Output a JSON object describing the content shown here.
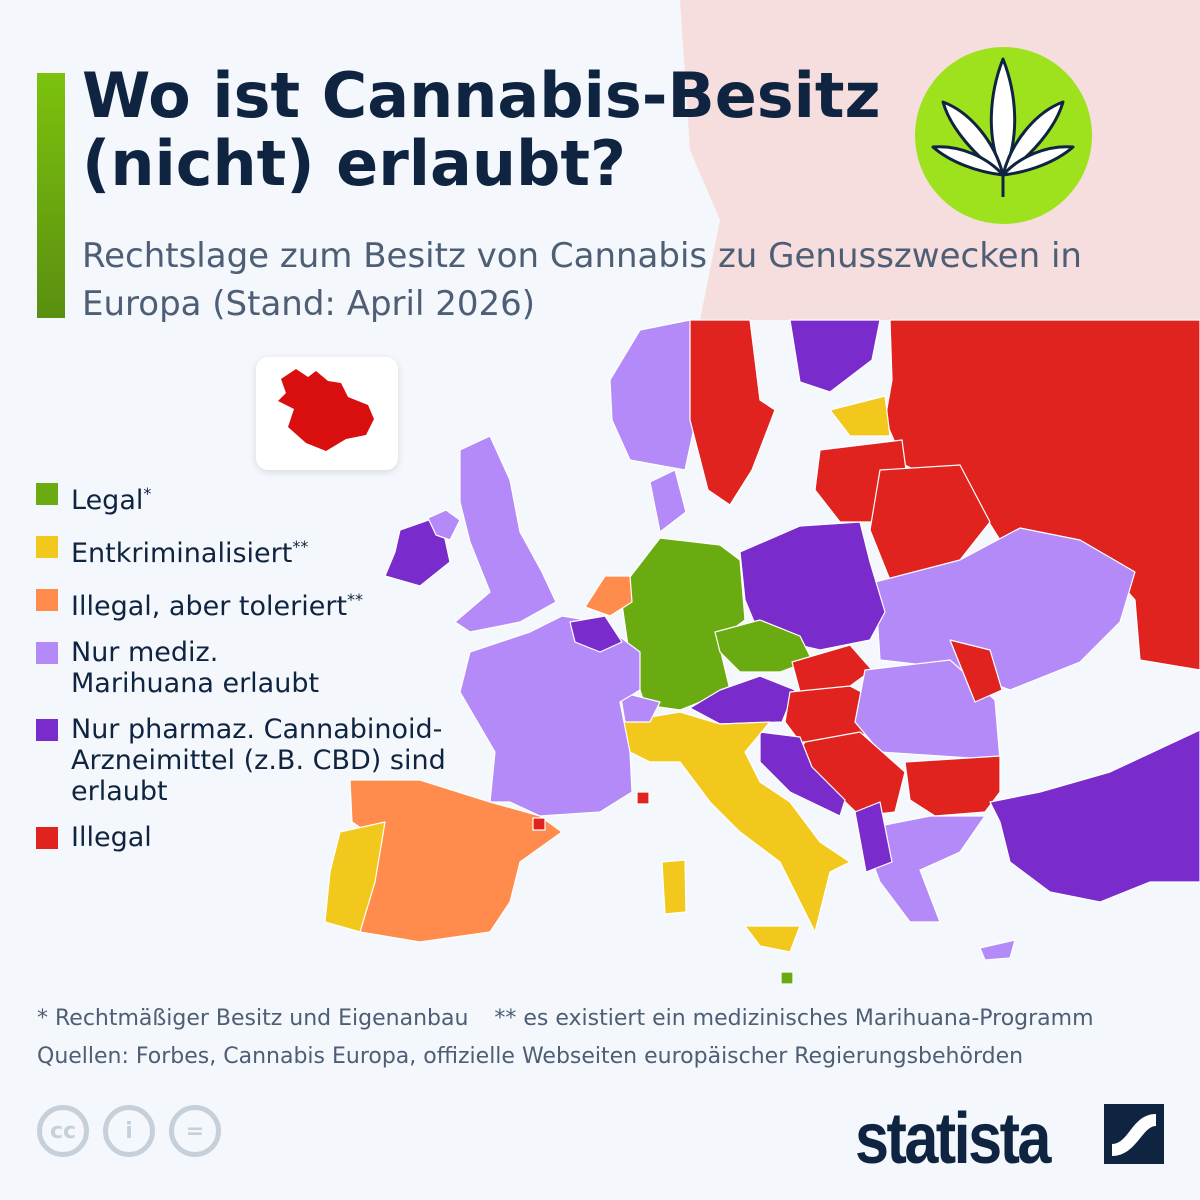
{
  "header": {
    "title_line1": "Wo ist Cannabis-Besitz",
    "title_line2": "(nicht) erlaubt?",
    "subtitle": "Rechtslage zum Besitz von Cannabis zu Genusszwecken in Europa (Stand: April 2026)"
  },
  "colors": {
    "legal": "#6aab12",
    "decriminalized": "#f2c81c",
    "tolerated": "#ff8c4c",
    "medical": "#b38af7",
    "pharma": "#7a2bcb",
    "illegal": "#e0231e"
  },
  "legend": [
    {
      "key": "legal",
      "label": "Legal",
      "mark": "*"
    },
    {
      "key": "decriminalized",
      "label": "Entkriminalisiert",
      "mark": "**"
    },
    {
      "key": "tolerated",
      "label": "Illegal, aber toleriert",
      "mark": "**"
    },
    {
      "key": "medical",
      "label": "Nur mediz. Marihuana erlaubt",
      "mark": ""
    },
    {
      "key": "pharma",
      "label": "Nur pharmaz. Cannabinoid-Arzneimittel (z.B. CBD) sind erlaubt",
      "mark": ""
    },
    {
      "key": "illegal",
      "label": "Illegal",
      "mark": ""
    }
  ],
  "countries": {
    "Russia": "illegal",
    "Norway": "medical",
    "Sweden": "illegal",
    "Finland": "pharma",
    "Estonia": "decriminalized",
    "Baltics": "illegal",
    "Belarus": "illegal",
    "Ukraine": "medical",
    "Poland": "pharma",
    "Germany": "legal",
    "Czechia": "legal",
    "Slovakia": "illegal",
    "Austria": "pharma",
    "Hungary": "illegal",
    "Romania": "medical",
    "Moldova": "illegal",
    "Bulgaria": "illegal",
    "Serbia": "illegal",
    "Croatia": "pharma",
    "Greece": "medical",
    "Albania": "pharma",
    "Turkey": "pharma",
    "Italy": "decriminalized",
    "Switzerland": "medical",
    "France": "medical",
    "Belgium": "pharma",
    "Netherlands": "tolerated",
    "Spain": "tolerated",
    "Portugal": "decriminalized",
    "UK": "medical",
    "Ireland": "pharma",
    "Denmark": "medical",
    "Iceland": "illegal",
    "Malta": "legal",
    "Monaco": "illegal",
    "Andorra": "illegal",
    "Cyprus": "medical"
  },
  "footer": {
    "note1": "* Rechtmäßiger Besitz und Eigenanbau",
    "note2": "** es existiert ein medizinisches Marihuana-Programm",
    "source": "Quellen: Forbes, Cannabis Europa, offizielle Webseiten europäischer Regierungsbehörden",
    "brand": "statista",
    "cc": "cc"
  }
}
